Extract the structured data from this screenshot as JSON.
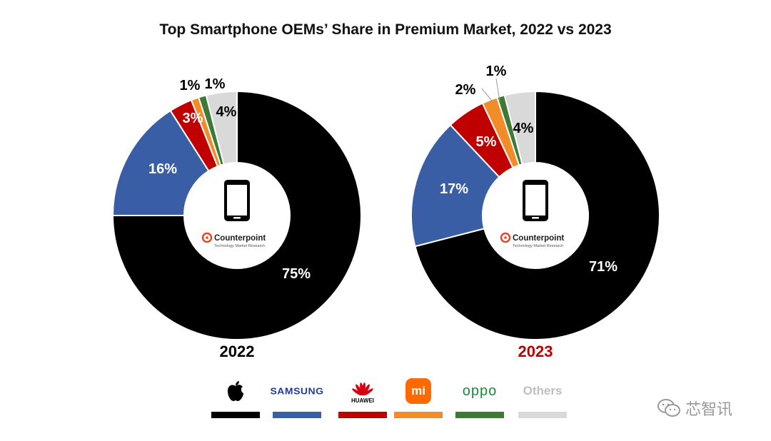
{
  "chart_data": {
    "type": "donut",
    "title": "Top Smartphone OEMs’ Share in Premium Market, 2022 vs 2023",
    "charts": [
      {
        "year": "2022",
        "year_color": "#000000",
        "slices": [
          {
            "brand": "Apple",
            "value": 75,
            "label": "75%",
            "color": "#000000",
            "label_color": "#ffffff"
          },
          {
            "brand": "Samsung",
            "value": 16,
            "label": "16%",
            "color": "#3a5ea6",
            "label_color": "#ffffff"
          },
          {
            "brand": "Huawei",
            "value": 3,
            "label": "3%",
            "color": "#c00000",
            "label_color": "#ffffff"
          },
          {
            "brand": "Xiaomi",
            "value": 1,
            "label": "1%",
            "color": "#f28c28",
            "label_color": "#000000"
          },
          {
            "brand": "OPPO",
            "value": 1,
            "label": "1%",
            "color": "#3e7a35",
            "label_color": "#000000"
          },
          {
            "brand": "Others",
            "value": 4,
            "label": "4%",
            "color": "#d9d9d9",
            "label_color": "#000000"
          }
        ]
      },
      {
        "year": "2023",
        "year_color": "#c00000",
        "slices": [
          {
            "brand": "Apple",
            "value": 71,
            "label": "71%",
            "color": "#000000",
            "label_color": "#ffffff"
          },
          {
            "brand": "Samsung",
            "value": 17,
            "label": "17%",
            "color": "#3a5ea6",
            "label_color": "#ffffff"
          },
          {
            "brand": "Huawei",
            "value": 5,
            "label": "5%",
            "color": "#c00000",
            "label_color": "#ffffff"
          },
          {
            "brand": "Xiaomi",
            "value": 2,
            "label": "2%",
            "color": "#f28c28",
            "label_color": "#000000"
          },
          {
            "brand": "OPPO",
            "value": 1,
            "label": "1%",
            "color": "#3e7a35",
            "label_color": "#000000"
          },
          {
            "brand": "Others",
            "value": 4,
            "label": "4%",
            "color": "#d9d9d9",
            "label_color": "#000000"
          }
        ]
      }
    ],
    "center_logo": {
      "name": "Counterpoint",
      "tagline": "Technology Market Research",
      "icon": "smartphone-icon"
    },
    "legend": [
      {
        "brand": "Apple",
        "logo_icon": "apple-icon",
        "text": "",
        "color": "#000000"
      },
      {
        "brand": "Samsung",
        "logo_icon": "samsung-wordmark",
        "text": "SAMSUNG",
        "color": "#3a5ea6"
      },
      {
        "brand": "Huawei",
        "logo_icon": "huawei-icon",
        "text": "HUAWEI",
        "color": "#c00000"
      },
      {
        "brand": "Xiaomi",
        "logo_icon": "xiaomi-icon",
        "text": "mi",
        "color": "#f28c28"
      },
      {
        "brand": "OPPO",
        "logo_icon": "oppo-wordmark",
        "text": "oppo",
        "color": "#3e7a35"
      },
      {
        "brand": "Others",
        "logo_icon": "",
        "text": "Others",
        "color": "#d9d9d9"
      }
    ]
  },
  "watermark": {
    "text": "芯智讯",
    "icon": "wechat-icon"
  }
}
